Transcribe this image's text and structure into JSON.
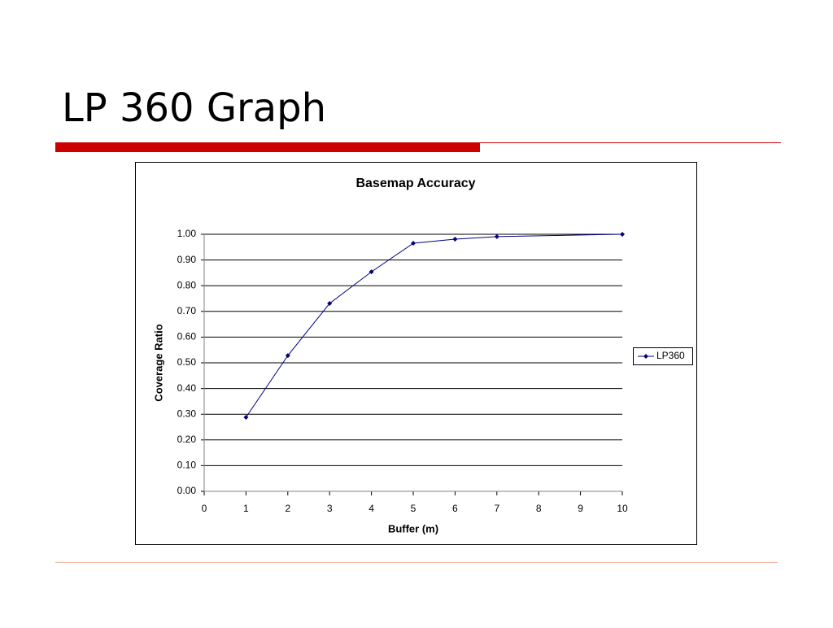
{
  "slide": {
    "title": "LP 360 Graph"
  },
  "chart_data": {
    "type": "line",
    "title": "Basemap Accuracy",
    "x_label": "Buffer (m)",
    "y_label": "Coverage Ratio",
    "x": [
      1,
      2,
      3,
      4,
      5,
      6,
      7,
      10
    ],
    "series": [
      {
        "name": "LP360",
        "color": "#000080",
        "values": [
          0.288,
          0.528,
          0.731,
          0.854,
          0.965,
          0.981,
          0.991,
          1.0
        ]
      }
    ],
    "xlim": [
      0,
      10
    ],
    "xticks": [
      0,
      1,
      2,
      3,
      4,
      5,
      6,
      7,
      8,
      9,
      10
    ],
    "ylim": [
      0,
      1
    ],
    "yticks": [
      {
        "value": 0,
        "label": "0.00"
      },
      {
        "value": 0.1,
        "label": "0.10"
      },
      {
        "value": 0.2,
        "label": "0.20"
      },
      {
        "value": 0.3,
        "label": "0.30"
      },
      {
        "value": 0.4,
        "label": "0.40"
      },
      {
        "value": 0.5,
        "label": "0.50"
      },
      {
        "value": 0.6,
        "label": "0.60"
      },
      {
        "value": 0.7,
        "label": "0.70"
      },
      {
        "value": 0.8,
        "label": "0.80"
      },
      {
        "value": 0.9,
        "label": "0.90"
      },
      {
        "value": 1,
        "label": "1.00"
      }
    ],
    "grid": true,
    "legend": "right"
  }
}
